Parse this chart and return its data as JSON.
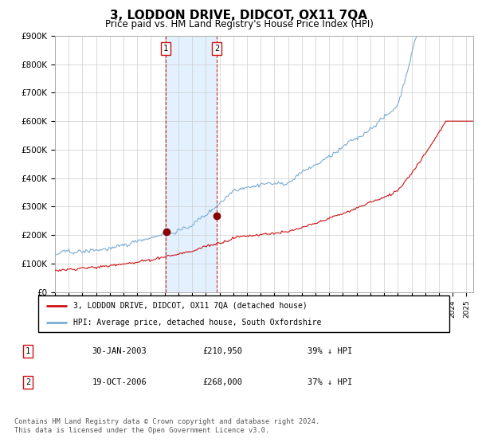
{
  "title": "3, LODDON DRIVE, DIDCOT, OX11 7QA",
  "subtitle": "Price paid vs. HM Land Registry's House Price Index (HPI)",
  "title_fontsize": 11,
  "subtitle_fontsize": 8.5,
  "ylim": [
    0,
    900000
  ],
  "yticks": [
    0,
    100000,
    200000,
    300000,
    400000,
    500000,
    600000,
    700000,
    800000,
    900000
  ],
  "ytick_labels": [
    "£0",
    "£100K",
    "£200K",
    "£300K",
    "£400K",
    "£500K",
    "£600K",
    "£700K",
    "£800K",
    "£900K"
  ],
  "hpi_color": "#7aadd4",
  "price_color": "#cc1111",
  "background_color": "#ffffff",
  "grid_color": "#cccccc",
  "sale1_date": 2003.08,
  "sale1_price": 210950,
  "sale2_date": 2006.8,
  "sale2_price": 268000,
  "shade_color": "#ddeeff",
  "legend_label_price": "3, LODDON DRIVE, DIDCOT, OX11 7QA (detached house)",
  "legend_label_hpi": "HPI: Average price, detached house, South Oxfordshire",
  "table_row1": [
    "1",
    "30-JAN-2003",
    "£210,950",
    "39% ↓ HPI"
  ],
  "table_row2": [
    "2",
    "19-OCT-2006",
    "£268,000",
    "37% ↓ HPI"
  ],
  "footer": "Contains HM Land Registry data © Crown copyright and database right 2024.\nThis data is licensed under the Open Government Licence v3.0.",
  "xlim_start": 1995,
  "xlim_end": 2025.5,
  "hpi_seed": 42,
  "price_seed": 7
}
